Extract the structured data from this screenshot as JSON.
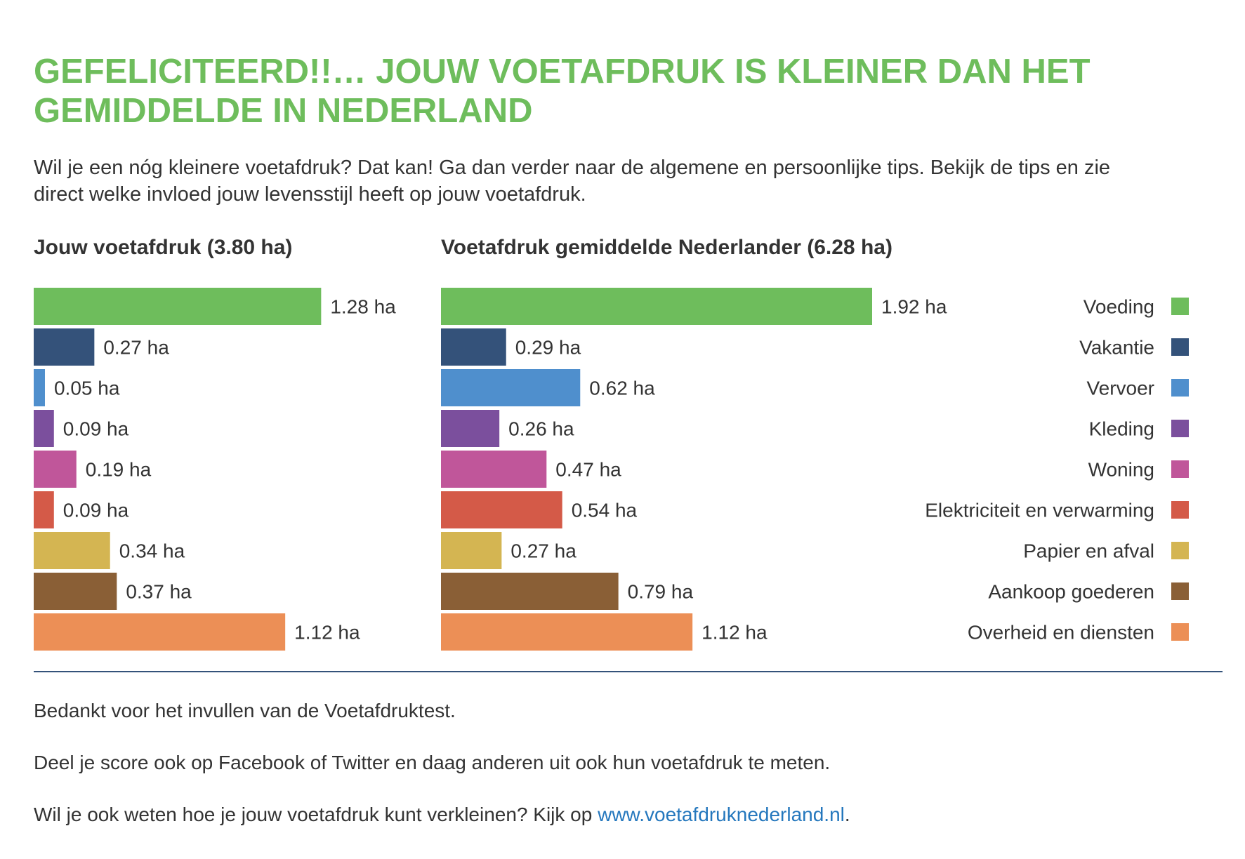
{
  "headline": {
    "line1": "GEFELICITEERD!!… JOUW VOETAFDRUK IS KLEINER DAN HET",
    "line2": "GEMIDDELDE IN NEDERLAND"
  },
  "intro": {
    "line1": "Wil je een nóg kleinere voetafdruk? Dat kan! Ga dan verder naar de algemene en persoonlijke tips. Bekijk de tips en zie",
    "line2": "direct welke invloed jouw levensstijl heeft op jouw voetafdruk."
  },
  "chart_data": [
    {
      "type": "bar",
      "orientation": "horizontal",
      "title": "Jouw voetafdruk (3.80 ha)",
      "unit": "ha",
      "categories": [
        "Voeding",
        "Vakantie",
        "Vervoer",
        "Kleding",
        "Woning",
        "Elektriciteit en verwarming",
        "Papier en afval",
        "Aankoop goederen",
        "Overheid en diensten"
      ],
      "values": [
        1.28,
        0.27,
        0.05,
        0.09,
        0.19,
        0.09,
        0.34,
        0.37,
        1.12
      ],
      "labels": [
        "1.28 ha",
        "0.27 ha",
        "0.05 ha",
        "0.09 ha",
        "0.19 ha",
        "0.09 ha",
        "0.34 ha",
        "0.37 ha",
        "1.12 ha"
      ],
      "xlim": [
        0,
        1.92
      ]
    },
    {
      "type": "bar",
      "orientation": "horizontal",
      "title": "Voetafdruk gemiddelde Nederlander (6.28 ha)",
      "unit": "ha",
      "categories": [
        "Voeding",
        "Vakantie",
        "Vervoer",
        "Kleding",
        "Woning",
        "Elektriciteit en verwarming",
        "Papier en afval",
        "Aankoop goederen",
        "Overheid en diensten"
      ],
      "values": [
        1.92,
        0.29,
        0.62,
        0.26,
        0.47,
        0.54,
        0.27,
        0.79,
        1.12
      ],
      "labels": [
        "1.92 ha",
        "0.29 ha",
        "0.62 ha",
        "0.26 ha",
        "0.47 ha",
        "0.54 ha",
        "0.27 ha",
        "0.79 ha",
        "1.12 ha"
      ],
      "xlim": [
        0,
        1.92
      ],
      "legend": "right"
    }
  ],
  "legend": [
    {
      "label": "Voeding",
      "color": "#6ebd5c"
    },
    {
      "label": "Vakantie",
      "color": "#34527a"
    },
    {
      "label": "Vervoer",
      "color": "#4f8fcd"
    },
    {
      "label": "Kleding",
      "color": "#7b4f9d"
    },
    {
      "label": "Woning",
      "color": "#c0569a"
    },
    {
      "label": "Elektriciteit en verwarming",
      "color": "#d45a48"
    },
    {
      "label": "Papier en afval",
      "color": "#d4b552"
    },
    {
      "label": "Aankoop goederen",
      "color": "#8a5f36"
    },
    {
      "label": "Overheid en diensten",
      "color": "#ec8f56"
    }
  ],
  "footer": {
    "thanks": "Bedankt voor het invullen van de Voetafdruktest.",
    "share": "Deel je score ook op Facebook of Twitter en daag anderen uit ook hun voetafdruk te meten.",
    "question_prefix": "Wil je ook weten hoe je jouw voetafdruk kunt verkleinen? Kijk op ",
    "link_text": "www.voetafdruknederland.nl",
    "question_suffix": "."
  }
}
